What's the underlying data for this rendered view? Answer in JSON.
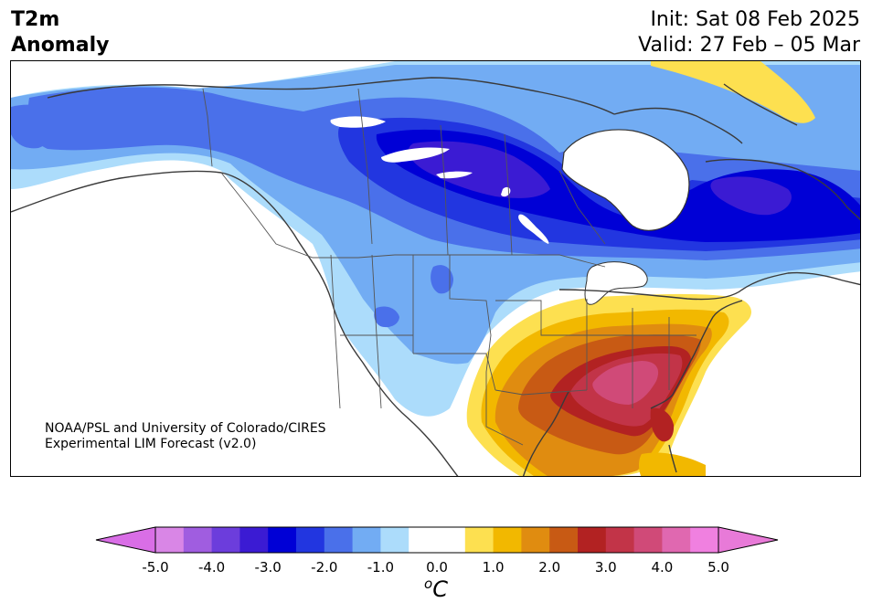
{
  "header": {
    "title_line1": "T2m",
    "title_line2": "Anomaly",
    "init_label": "Init: Sat 08 Feb 2025",
    "valid_label": "Valid: 27 Feb – 05 Mar"
  },
  "credit": {
    "line1": "NOAA/PSL and University of Colorado/CIRES",
    "line2": "Experimental LIM Forecast (v2.0)"
  },
  "colorbar": {
    "unit_prefix": "o",
    "unit_main": "C",
    "ticks": [
      "-5.0",
      "-4.0",
      "-3.0",
      "-2.0",
      "-1.0",
      "0.0",
      "1.0",
      "2.0",
      "3.0",
      "4.0",
      "5.0"
    ],
    "colors": [
      "#d986e6",
      "#a05de0",
      "#6c3ddc",
      "#3b1bd3",
      "#0000d6",
      "#2236e0",
      "#4a70ea",
      "#72acf3",
      "#acdcfb",
      "#ffffff",
      "#ffffff",
      "#fde050",
      "#f2b800",
      "#e08c10",
      "#c85a14",
      "#b22222",
      "#c23448",
      "#d04a78",
      "#e068b0",
      "#f080e0"
    ],
    "under_color": "#d96ee6",
    "over_color": "#e87ad8"
  },
  "map": {
    "variable": "2m temperature anomaly",
    "projection": "Lambert conformal (North America)",
    "cold_core": "Central Canada / Hudson Bay region",
    "warm_core": "Southeastern United States",
    "levels": [
      -5.0,
      -4.5,
      -4.0,
      -3.5,
      -3.0,
      -2.5,
      -2.0,
      -1.5,
      -1.0,
      -0.5,
      0.0,
      0.5,
      1.0,
      1.5,
      2.0,
      2.5,
      3.0,
      3.5,
      4.0,
      4.5,
      5.0
    ]
  }
}
